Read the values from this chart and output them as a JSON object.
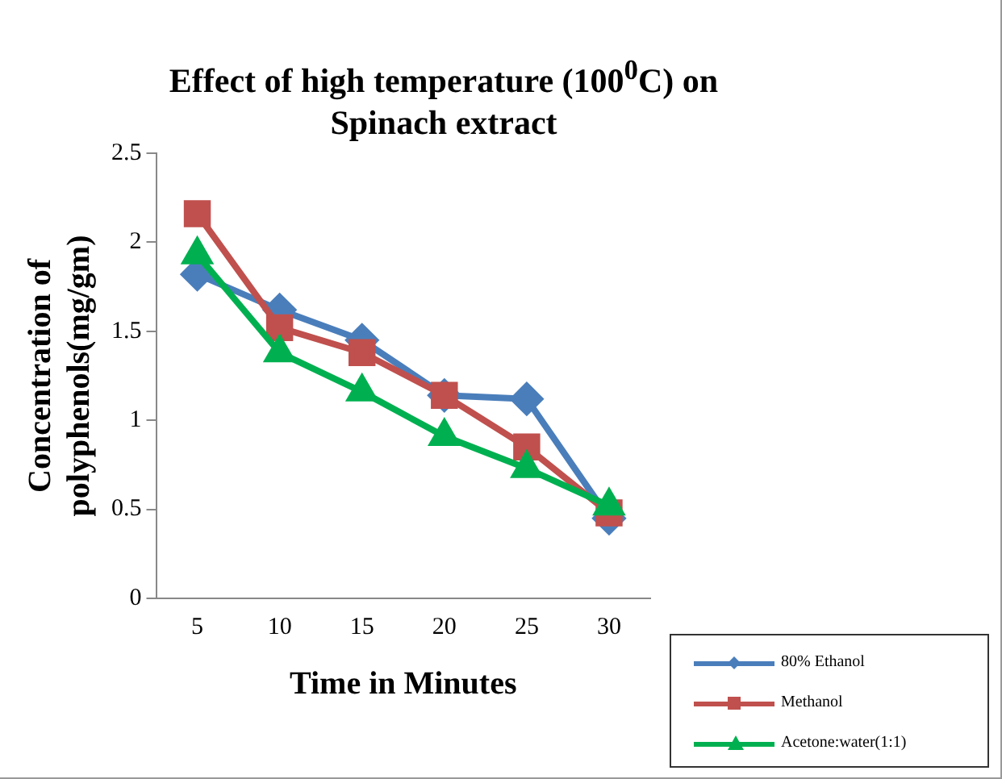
{
  "chart_data": {
    "type": "line",
    "title": "Effect of high temperature (100$^{0}$C) on Spinach extract",
    "xlabel": "Time in Minutes",
    "ylabel": "Concentration of polyphenols(mg/gm)",
    "categories": [
      "5",
      "10",
      "15",
      "20",
      "25",
      "30"
    ],
    "series": [
      {
        "name": "80% Ethanol",
        "color": "#4a7ebb",
        "marker": "diamond",
        "values": [
          1.82,
          1.62,
          1.45,
          1.14,
          1.12,
          0.45
        ]
      },
      {
        "name": "Methanol",
        "color": "#c0504d",
        "marker": "square",
        "values": [
          2.16,
          1.52,
          1.38,
          1.14,
          0.85,
          0.48
        ]
      },
      {
        "name": "Acetone:water(1:1)",
        "color": "#00b050",
        "marker": "triangle",
        "values": [
          1.93,
          1.38,
          1.16,
          0.91,
          0.73,
          0.52
        ]
      }
    ],
    "ylim": [
      0,
      2.5
    ],
    "yticks": [
      0,
      0.5,
      1,
      1.5,
      2,
      2.5
    ],
    "grid": false,
    "legend": "bottom right",
    "line_style": "solid"
  }
}
